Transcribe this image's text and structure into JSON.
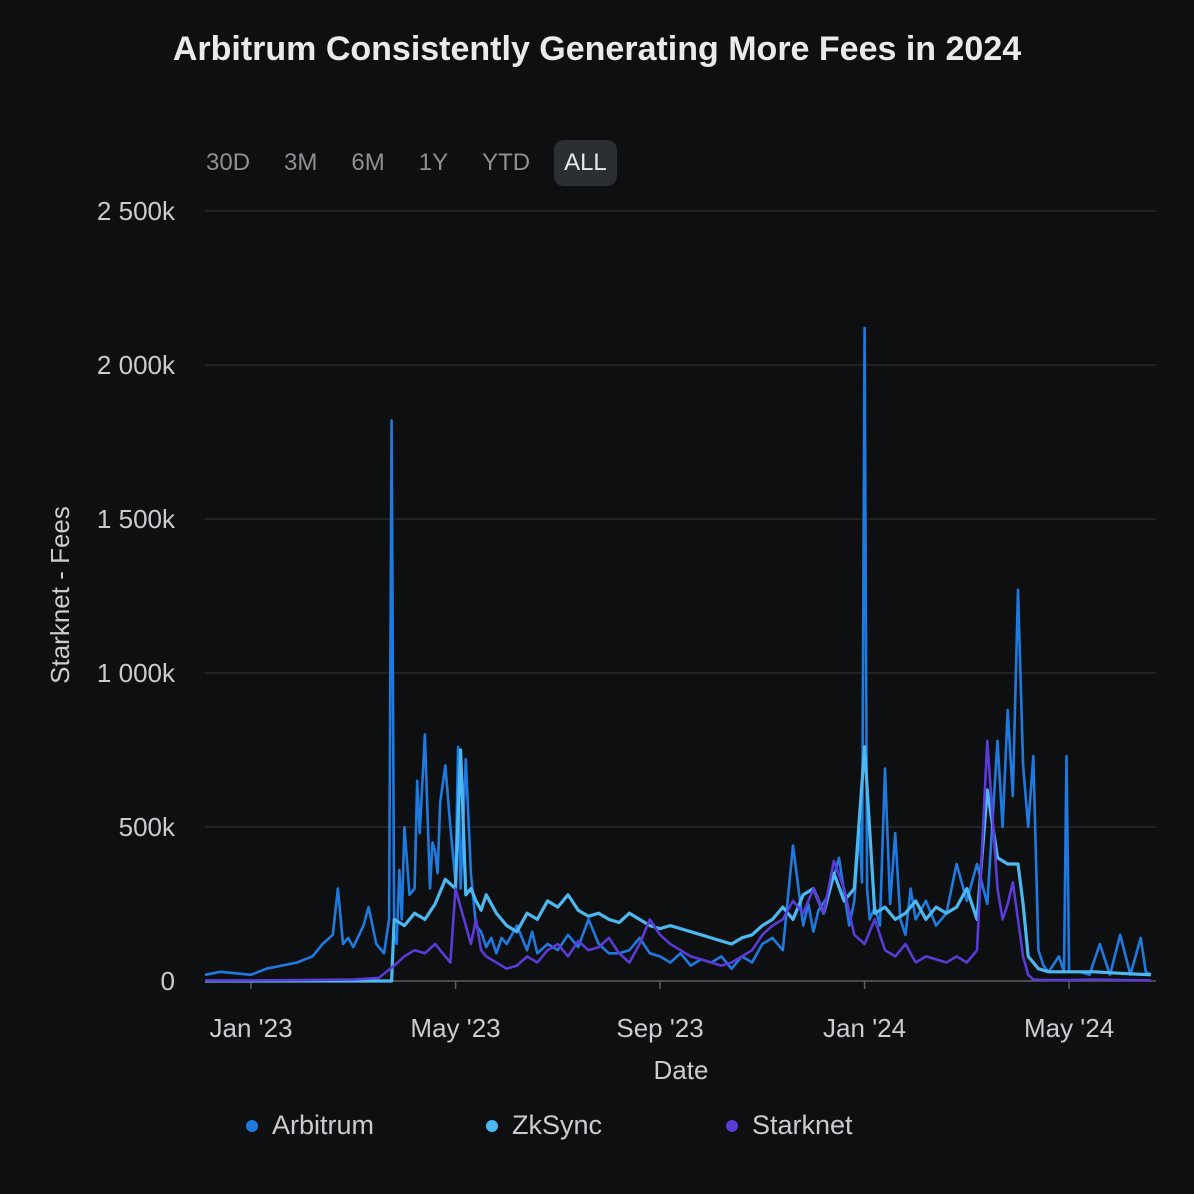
{
  "chart_data": {
    "type": "line",
    "title": "Arbitrum Consistently Generating More Fees in 2024",
    "xlabel": "Date",
    "ylabel": "Starknet - Fees",
    "ylim": [
      0,
      2500000
    ],
    "yticks": [
      {
        "value": 0,
        "label": "0"
      },
      {
        "value": 500000,
        "label": "500k"
      },
      {
        "value": 1000000,
        "label": "1 000k"
      },
      {
        "value": 1500000,
        "label": "1 500k"
      },
      {
        "value": 2000000,
        "label": "2 000k"
      },
      {
        "value": 2500000,
        "label": "2 500k"
      }
    ],
    "xlim": [
      -0.9,
      17.7
    ],
    "xticks": [
      {
        "value": 0,
        "label": "Jan '23"
      },
      {
        "value": 4,
        "label": "May '23"
      },
      {
        "value": 8,
        "label": "Sep '23"
      },
      {
        "value": 12,
        "label": "Jan '24"
      },
      {
        "value": 16,
        "label": "May '24"
      }
    ],
    "grid": true,
    "legend_position": "bottom",
    "range_selector": {
      "options": [
        "30D",
        "3M",
        "6M",
        "1Y",
        "YTD",
        "ALL"
      ],
      "selected": "ALL"
    },
    "series": [
      {
        "name": "Arbitrum",
        "color": "#1f7ae0",
        "x": [
          -0.9,
          -0.6,
          -0.3,
          0,
          0.3,
          0.6,
          0.9,
          1.2,
          1.4,
          1.6,
          1.7,
          1.8,
          1.9,
          2.0,
          2.2,
          2.3,
          2.45,
          2.6,
          2.7,
          2.75,
          2.8,
          2.85,
          2.9,
          2.95,
          3.0,
          3.1,
          3.2,
          3.25,
          3.3,
          3.4,
          3.5,
          3.55,
          3.6,
          3.65,
          3.7,
          3.8,
          3.9,
          4.0,
          4.05,
          4.1,
          4.2,
          4.3,
          4.4,
          4.5,
          4.6,
          4.7,
          4.8,
          4.9,
          5.0,
          5.2,
          5.4,
          5.5,
          5.6,
          5.8,
          6.0,
          6.2,
          6.4,
          6.6,
          6.8,
          7.0,
          7.2,
          7.4,
          7.6,
          7.8,
          8.0,
          8.2,
          8.4,
          8.6,
          8.8,
          9.0,
          9.2,
          9.4,
          9.6,
          9.8,
          10.0,
          10.2,
          10.4,
          10.6,
          10.8,
          10.9,
          11.0,
          11.1,
          11.3,
          11.5,
          11.7,
          11.8,
          11.9,
          11.95,
          12.0,
          12.05,
          12.1,
          12.2,
          12.3,
          12.4,
          12.5,
          12.6,
          12.7,
          12.8,
          12.9,
          13.0,
          13.2,
          13.4,
          13.6,
          13.8,
          14.0,
          14.2,
          14.4,
          14.6,
          14.7,
          14.8,
          14.9,
          15.0,
          15.1,
          15.2,
          15.3,
          15.4,
          15.5,
          15.6,
          15.8,
          15.9,
          15.95,
          16.0,
          16.2,
          16.4,
          16.6,
          16.8,
          17.0,
          17.2,
          17.4,
          17.5,
          17.6
        ],
        "values": [
          20000,
          30000,
          25000,
          20000,
          40000,
          50000,
          60000,
          80000,
          120000,
          150000,
          300000,
          120000,
          140000,
          110000,
          180000,
          240000,
          120000,
          90000,
          200000,
          1820000,
          150000,
          120000,
          360000,
          200000,
          500000,
          280000,
          300000,
          650000,
          480000,
          800000,
          300000,
          450000,
          420000,
          350000,
          580000,
          700000,
          500000,
          320000,
          760000,
          300000,
          720000,
          350000,
          180000,
          160000,
          110000,
          140000,
          90000,
          140000,
          120000,
          180000,
          100000,
          160000,
          90000,
          120000,
          100000,
          150000,
          110000,
          200000,
          120000,
          90000,
          90000,
          100000,
          140000,
          90000,
          80000,
          60000,
          90000,
          50000,
          70000,
          60000,
          80000,
          40000,
          80000,
          60000,
          120000,
          140000,
          100000,
          440000,
          180000,
          250000,
          160000,
          230000,
          280000,
          400000,
          180000,
          260000,
          500000,
          320000,
          2120000,
          300000,
          200000,
          240000,
          180000,
          690000,
          250000,
          480000,
          200000,
          150000,
          300000,
          200000,
          260000,
          180000,
          220000,
          380000,
          260000,
          380000,
          250000,
          780000,
          500000,
          880000,
          600000,
          1270000,
          700000,
          500000,
          730000,
          100000,
          50000,
          30000,
          80000,
          30000,
          730000,
          30000,
          30000,
          20000,
          120000,
          20000,
          150000,
          20000,
          140000,
          30000,
          20000
        ],
        "line_width": 2.6
      },
      {
        "name": "ZkSync",
        "color": "#4db8f0",
        "x": [
          -0.9,
          0,
          1,
          2,
          2.6,
          2.7,
          2.75,
          2.8,
          3.0,
          3.2,
          3.4,
          3.6,
          3.8,
          4.0,
          4.1,
          4.2,
          4.3,
          4.4,
          4.5,
          4.6,
          4.8,
          5.0,
          5.2,
          5.4,
          5.6,
          5.8,
          6.0,
          6.2,
          6.4,
          6.6,
          6.8,
          7.0,
          7.2,
          7.4,
          7.6,
          7.8,
          8.0,
          8.2,
          8.4,
          8.6,
          8.8,
          9.0,
          9.2,
          9.4,
          9.6,
          9.8,
          10.0,
          10.2,
          10.4,
          10.6,
          10.8,
          11.0,
          11.2,
          11.4,
          11.6,
          11.8,
          12.0,
          12.2,
          12.4,
          12.6,
          12.8,
          13.0,
          13.2,
          13.4,
          13.6,
          13.8,
          14.0,
          14.2,
          14.4,
          14.6,
          14.8,
          15.0,
          15.1,
          15.2,
          15.4,
          15.6,
          16.0,
          16.5,
          17.0,
          17.6
        ],
        "values": [
          0,
          0,
          0,
          0,
          0,
          0,
          0,
          200000,
          180000,
          220000,
          200000,
          250000,
          330000,
          300000,
          750000,
          280000,
          300000,
          260000,
          230000,
          280000,
          220000,
          180000,
          160000,
          220000,
          200000,
          260000,
          240000,
          280000,
          230000,
          210000,
          220000,
          200000,
          190000,
          220000,
          200000,
          180000,
          170000,
          180000,
          170000,
          160000,
          150000,
          140000,
          130000,
          120000,
          140000,
          150000,
          180000,
          200000,
          240000,
          200000,
          280000,
          300000,
          220000,
          350000,
          260000,
          300000,
          760000,
          220000,
          240000,
          200000,
          220000,
          260000,
          200000,
          240000,
          220000,
          240000,
          300000,
          200000,
          620000,
          400000,
          380000,
          380000,
          250000,
          80000,
          40000,
          30000,
          30000,
          30000,
          25000,
          20000
        ],
        "line_width": 3.2
      },
      {
        "name": "Starknet",
        "color": "#5b3bd6",
        "x": [
          -0.9,
          0,
          1,
          2,
          2.5,
          2.8,
          3.0,
          3.2,
          3.4,
          3.6,
          3.8,
          3.9,
          4.0,
          4.1,
          4.2,
          4.3,
          4.4,
          4.5,
          4.6,
          4.8,
          5.0,
          5.2,
          5.4,
          5.6,
          5.8,
          6.0,
          6.2,
          6.4,
          6.6,
          6.8,
          7.0,
          7.2,
          7.4,
          7.6,
          7.8,
          8.0,
          8.2,
          8.4,
          8.6,
          8.8,
          9.0,
          9.2,
          9.4,
          9.6,
          9.8,
          10.0,
          10.2,
          10.4,
          10.6,
          10.8,
          11.0,
          11.2,
          11.4,
          11.6,
          11.8,
          12.0,
          12.2,
          12.4,
          12.6,
          12.8,
          13.0,
          13.2,
          13.4,
          13.6,
          13.8,
          14.0,
          14.2,
          14.4,
          14.6,
          14.7,
          14.8,
          14.9,
          15.0,
          15.1,
          15.2,
          15.3,
          15.5,
          16.0,
          16.5,
          17.0,
          17.6
        ],
        "values": [
          2000,
          2000,
          3000,
          5000,
          10000,
          50000,
          80000,
          100000,
          90000,
          120000,
          80000,
          60000,
          300000,
          240000,
          180000,
          120000,
          200000,
          100000,
          80000,
          60000,
          40000,
          50000,
          80000,
          60000,
          100000,
          120000,
          80000,
          130000,
          100000,
          110000,
          140000,
          90000,
          60000,
          120000,
          200000,
          150000,
          120000,
          100000,
          80000,
          70000,
          60000,
          50000,
          60000,
          80000,
          100000,
          150000,
          180000,
          200000,
          260000,
          220000,
          300000,
          220000,
          390000,
          300000,
          150000,
          120000,
          200000,
          100000,
          80000,
          120000,
          60000,
          80000,
          70000,
          60000,
          80000,
          60000,
          100000,
          780000,
          300000,
          200000,
          250000,
          320000,
          200000,
          80000,
          20000,
          5000,
          3000,
          3000,
          5000,
          3000,
          2000
        ],
        "line_width": 2.6
      }
    ]
  }
}
